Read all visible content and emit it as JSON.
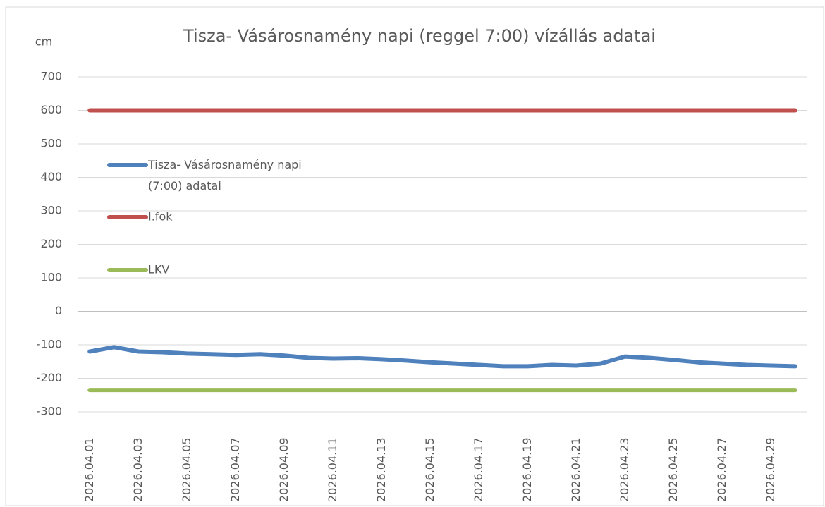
{
  "chart_data": {
    "type": "line",
    "title": "Tisza- Vásárosnamény napi (reggel 7:00) vízállás adatai",
    "y_label": "cm",
    "categories": [
      "2026.04.01",
      null,
      "2026.04.03",
      null,
      "2026.04.05",
      null,
      "2026.04.07",
      null,
      "2026.04.09",
      null,
      "2026.04.11",
      null,
      "2026.04.13",
      null,
      "2026.04.15",
      null,
      "2026.04.17",
      null,
      "2026.04.19",
      null,
      "2026.04.21",
      null,
      "2026.04.23",
      null,
      "2026.04.25",
      null,
      "2026.04.27",
      null,
      "2026.04.29",
      null
    ],
    "series": [
      {
        "name": "Tisza- Vásárosnamény napi (7:00) adatai",
        "color": "#4f81bd",
        "values": [
          -120,
          -107,
          -120,
          -122,
          -126,
          -128,
          -130,
          -128,
          -132,
          -139,
          -141,
          -140,
          -143,
          -147,
          -152,
          -156,
          -160,
          -164,
          -164,
          -160,
          -162,
          -156,
          -135,
          -139,
          -145,
          -152,
          -156,
          -160,
          -162,
          -164
        ]
      },
      {
        "name": "I.fok",
        "color": "#c0504d",
        "values": [
          600,
          600,
          600,
          600,
          600,
          600,
          600,
          600,
          600,
          600,
          600,
          600,
          600,
          600,
          600,
          600,
          600,
          600,
          600,
          600,
          600,
          600,
          600,
          600,
          600,
          600,
          600,
          600,
          600,
          600
        ]
      },
      {
        "name": "LKV",
        "color": "#9bbb59",
        "values": [
          -235,
          -235,
          -235,
          -235,
          -235,
          -235,
          -235,
          -235,
          -235,
          -235,
          -235,
          -235,
          -235,
          -235,
          -235,
          -235,
          -235,
          -235,
          -235,
          -235,
          -235,
          -235,
          -235,
          -235,
          -235,
          -235,
          -235,
          -235,
          -235,
          -235
        ]
      }
    ],
    "ylim": [
      -300,
      700
    ],
    "yticks": [
      -300,
      -200,
      -100,
      0,
      100,
      200,
      300,
      400,
      500,
      600,
      700
    ],
    "grid": true,
    "legend": "left"
  }
}
